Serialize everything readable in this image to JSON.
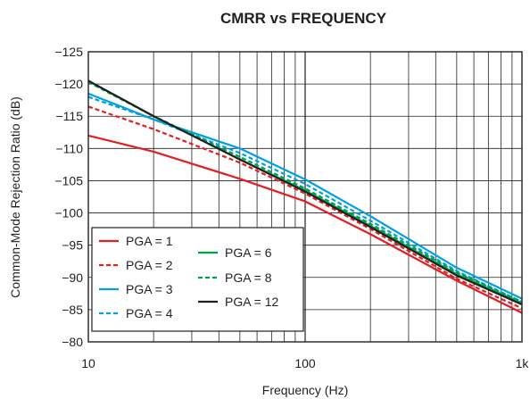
{
  "chart_data": {
    "type": "line",
    "title": "CMRR vs FREQUENCY",
    "xlabel": "Frequency (Hz)",
    "ylabel": "Common-Mode Rejection Ratio (dB)",
    "x_scale": "log",
    "xlim": [
      10,
      1000
    ],
    "ylim": [
      -125,
      -80
    ],
    "y_inverted": true,
    "x_ticks": [
      10,
      100,
      1000
    ],
    "x_tick_labels": [
      "10",
      "100",
      "1k"
    ],
    "y_ticks": [
      -125,
      -120,
      -115,
      -110,
      -105,
      -100,
      -95,
      -90,
      -85,
      -80
    ],
    "y_tick_labels": [
      "−125",
      "−120",
      "−115",
      "−110",
      "−105",
      "−100",
      "−95",
      "−90",
      "−85",
      "−80"
    ],
    "grid": true,
    "legend_position": "bottom-left",
    "x": [
      10,
      20,
      50,
      100,
      200,
      500,
      1000
    ],
    "series": [
      {
        "name": "PGA = 1",
        "color": "#e31e24",
        "dash": "solid",
        "values": [
          -112.0,
          -109.5,
          -105.3,
          -101.8,
          -96.7,
          -89.5,
          -84.5
        ]
      },
      {
        "name": "PGA = 2",
        "color": "#e31e24",
        "dash": "dashed",
        "values": [
          -116.5,
          -113.0,
          -107.8,
          -103.0,
          -97.5,
          -89.8,
          -85.2
        ]
      },
      {
        "name": "PGA = 3",
        "color": "#00a0e2",
        "dash": "solid",
        "values": [
          -118.5,
          -114.5,
          -110.0,
          -105.2,
          -99.5,
          -91.5,
          -86.7
        ]
      },
      {
        "name": "PGA = 4",
        "color": "#00a0e2",
        "dash": "dashed",
        "values": [
          -118.0,
          -114.5,
          -109.3,
          -104.5,
          -98.8,
          -91.0,
          -86.2
        ]
      },
      {
        "name": "PGA = 6",
        "color": "#00a14b",
        "dash": "solid",
        "values": [
          -120.5,
          -115.0,
          -108.3,
          -103.5,
          -98.0,
          -90.5,
          -86.0
        ]
      },
      {
        "name": "PGA = 8",
        "color": "#00a14b",
        "dash": "dashed",
        "values": [
          -120.3,
          -115.0,
          -108.7,
          -103.8,
          -98.3,
          -90.8,
          -86.2
        ]
      },
      {
        "name": "PGA = 12",
        "color": "#231f20",
        "dash": "solid",
        "values": [
          -120.5,
          -115.0,
          -108.3,
          -103.3,
          -97.8,
          -90.3,
          -85.8
        ]
      }
    ]
  }
}
